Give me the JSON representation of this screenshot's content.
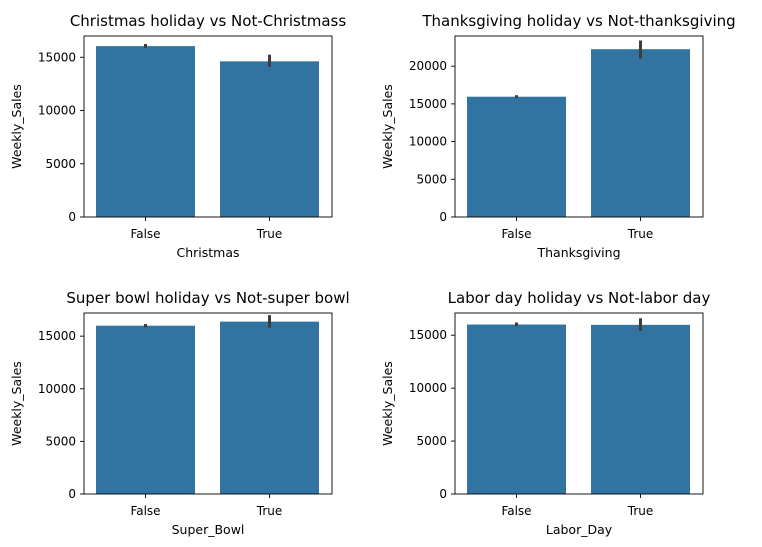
{
  "colors": {
    "bar": "#3274a1",
    "errorbar": "#3d3d3d",
    "axis": "#000000"
  },
  "chart_data": [
    {
      "type": "bar",
      "title": "Christmas holiday vs Not-Christmass",
      "xlabel": "Christmas",
      "ylabel": "Weekly_Sales",
      "categories": [
        "False",
        "True"
      ],
      "values": [
        16050,
        14620
      ],
      "error_low": [
        15900,
        14100
      ],
      "error_high": [
        16250,
        15250
      ],
      "ylim": [
        0,
        17000
      ],
      "yticks": [
        0,
        5000,
        10000,
        15000
      ],
      "ytick_labels": [
        "0",
        "5000",
        "10000",
        "15000"
      ],
      "grid": false
    },
    {
      "type": "bar",
      "title": "Thanksgiving holiday vs Not-thanksgiving",
      "xlabel": "Thanksgiving",
      "ylabel": "Weekly_Sales",
      "categories": [
        "False",
        "True"
      ],
      "values": [
        15950,
        22250
      ],
      "error_low": [
        15800,
        21000
      ],
      "error_high": [
        16150,
        23400
      ],
      "ylim": [
        0,
        24000
      ],
      "yticks": [
        0,
        5000,
        10000,
        15000,
        20000
      ],
      "ytick_labels": [
        "0",
        "5000",
        "10000",
        "15000",
        "20000"
      ],
      "grid": false
    },
    {
      "type": "bar",
      "title": "Super bowl holiday vs Not-super bowl",
      "xlabel": "Super_Bowl",
      "ylabel": "Weekly_Sales",
      "categories": [
        "False",
        "True"
      ],
      "values": [
        15990,
        16380
      ],
      "error_low": [
        15850,
        15800
      ],
      "error_high": [
        16150,
        17000
      ],
      "ylim": [
        0,
        17200
      ],
      "yticks": [
        0,
        5000,
        10000,
        15000
      ],
      "ytick_labels": [
        "0",
        "5000",
        "10000",
        "15000"
      ],
      "grid": false
    },
    {
      "type": "bar",
      "title": "Labor day holiday vs Not-labor day",
      "xlabel": "Labor_Day",
      "ylabel": "Weekly_Sales",
      "categories": [
        "False",
        "True"
      ],
      "values": [
        16010,
        15980
      ],
      "error_low": [
        15850,
        15400
      ],
      "error_high": [
        16200,
        16600
      ],
      "ylim": [
        0,
        17100
      ],
      "yticks": [
        0,
        5000,
        10000,
        15000
      ],
      "ytick_labels": [
        "0",
        "5000",
        "10000",
        "15000"
      ],
      "grid": false
    }
  ]
}
